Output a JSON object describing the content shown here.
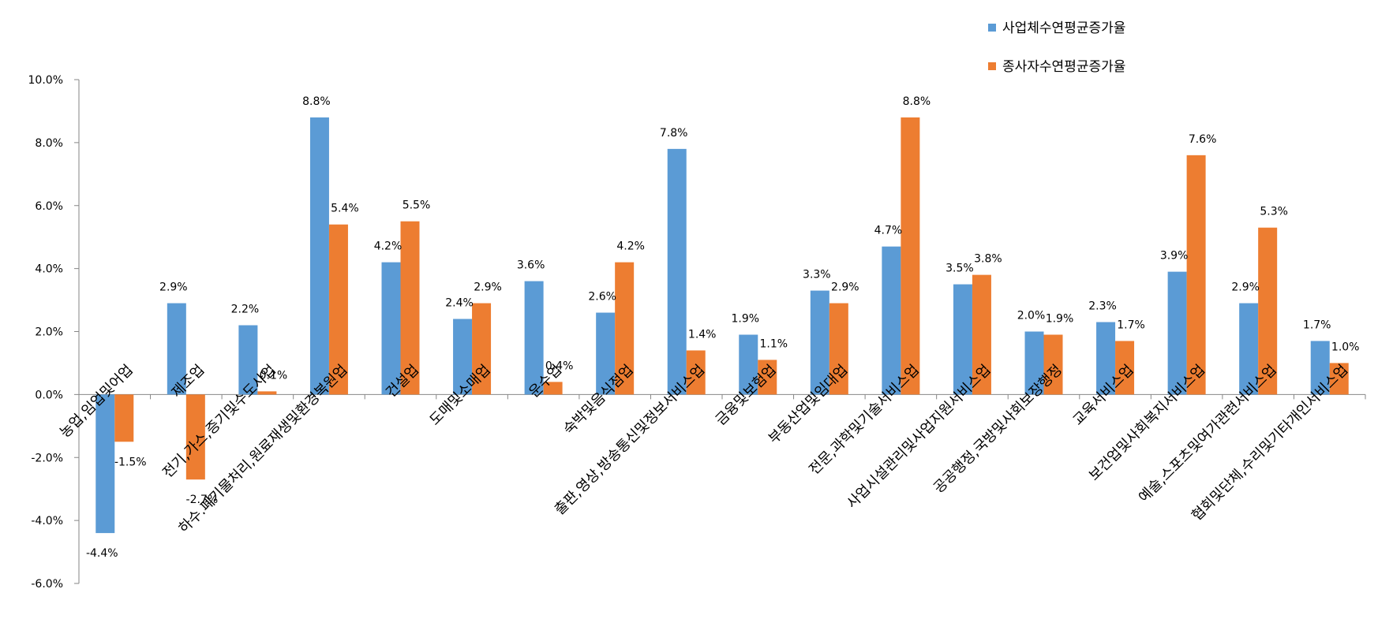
{
  "chart_data": {
    "type": "bar",
    "legend_position": "top-right",
    "ylim": [
      -6.0,
      10.0
    ],
    "yticks": [
      "10.0%",
      "8.0%",
      "6.0%",
      "4.0%",
      "2.0%",
      "0.0%",
      "-2.0%",
      "-4.0%",
      "-6.0%"
    ],
    "grid": false,
    "categories": [
      "농업,임업및어업",
      "제조업",
      "전기,가스,증기및수도사업",
      "하수.폐기물처리,원료재생및환경복원업",
      "건설업",
      "도매및소매업",
      "운수업",
      "숙박및음식점업",
      "출판,영상,방송통신및정보서비스업",
      "금융및보험업",
      "부동산업및임대업",
      "전문,과학및기술서비스업",
      "사업시설관리및사업지원서비스업",
      "공공행정,국방및사회보장행정",
      "교육서비스업",
      "보건업및사회복지서비스업",
      "예술,스포츠및여가관련서비스업",
      "협회및단체,수리및기타개인서비스업"
    ],
    "series": [
      {
        "name": "사업체수연평균증가율",
        "color": "#5B9BD5",
        "values": [
          -4.4,
          2.9,
          2.2,
          8.8,
          4.2,
          2.4,
          3.6,
          2.6,
          7.8,
          1.9,
          3.3,
          4.7,
          3.5,
          2.0,
          2.3,
          3.9,
          2.9,
          1.7
        ],
        "labels": [
          "-4.4%",
          "2.9%",
          "2.2%",
          "8.8%",
          "4.2%",
          "2.4%",
          "3.6%",
          "2.6%",
          "7.8%",
          "1.9%",
          "3.3%",
          "4.7%",
          "3.5%",
          "2.0%",
          "2.3%",
          "3.9%",
          "2.9%",
          "1.7%"
        ]
      },
      {
        "name": "종사자수연평균증가율",
        "color": "#ED7D31",
        "values": [
          -1.5,
          -2.7,
          0.1,
          5.4,
          5.5,
          2.9,
          0.4,
          4.2,
          1.4,
          1.1,
          2.9,
          8.8,
          3.8,
          1.9,
          1.7,
          7.6,
          5.3,
          1.0
        ],
        "labels": [
          "-1.5%",
          "-2.7%",
          "0.1%",
          "5.4%",
          "5.5%",
          "2.9%",
          "0.4%",
          "4.2%",
          "1.4%",
          "1.1%",
          "2.9%",
          "8.8%",
          "3.8%",
          "1.9%",
          "1.7%",
          "7.6%",
          "5.3%",
          "1.0%"
        ]
      }
    ]
  }
}
